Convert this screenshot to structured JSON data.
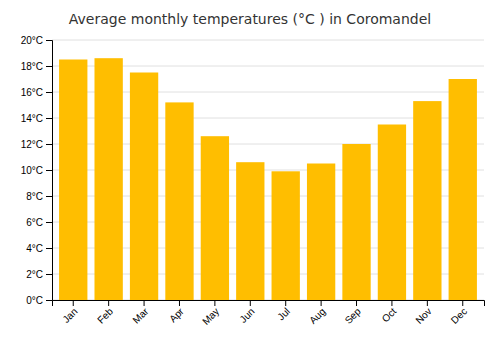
{
  "chart_data": {
    "type": "bar",
    "title": "Average monthly temperatures (°C ) in Coromandel",
    "categories": [
      "Jan",
      "Feb",
      "Mar",
      "Apr",
      "May",
      "Jun",
      "Jul",
      "Aug",
      "Sep",
      "Oct",
      "Nov",
      "Dec"
    ],
    "values": [
      18.5,
      18.6,
      17.5,
      15.2,
      12.6,
      10.6,
      9.9,
      10.5,
      12.0,
      13.5,
      15.3,
      17.0
    ],
    "color": "#FFBE00",
    "ylim": [
      0,
      20
    ],
    "yticks": [
      {
        "value": 0,
        "label": "0°C"
      },
      {
        "value": 2,
        "label": "2°C"
      },
      {
        "value": 4,
        "label": "4°C"
      },
      {
        "value": 6,
        "label": "6°C"
      },
      {
        "value": 8,
        "label": "8°C"
      },
      {
        "value": 10,
        "label": "10°C"
      },
      {
        "value": 12,
        "label": "12°C"
      },
      {
        "value": 14,
        "label": "14°C"
      },
      {
        "value": 16,
        "label": "16°C"
      },
      {
        "value": 18,
        "label": "18°C"
      },
      {
        "value": 20,
        "label": "20°C"
      }
    ],
    "grid": true
  }
}
